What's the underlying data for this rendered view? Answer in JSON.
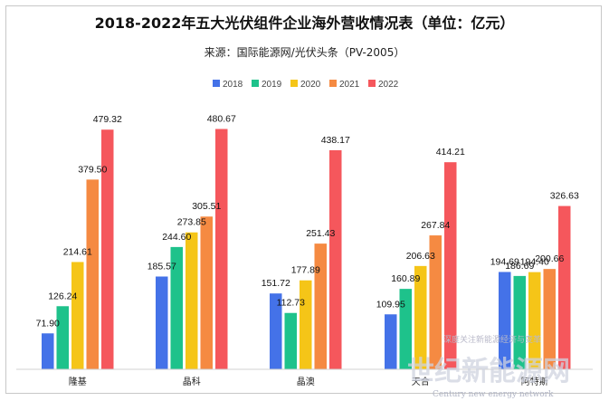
{
  "chart_data": {
    "type": "bar",
    "title": "2018-2022年五大光伏组件企业海外营收情况表（单位：亿元）",
    "subtitle": "来源：国际能源网/光伏头条（PV-2005）",
    "categories": [
      "隆基",
      "晶科",
      "晶澳",
      "天合",
      "阿特斯"
    ],
    "series": [
      {
        "name": "2018",
        "color": "#4472e8",
        "values": [
          71.9,
          185.57,
          151.72,
          109.95,
          194.69
        ]
      },
      {
        "name": "2019",
        "color": "#1ec28b",
        "values": [
          126.24,
          244.6,
          112.73,
          160.89,
          186.69
        ]
      },
      {
        "name": "2020",
        "color": "#f5c518",
        "values": [
          214.61,
          273.85,
          177.89,
          206.63,
          194.4
        ]
      },
      {
        "name": "2021",
        "color": "#f58a42",
        "values": [
          379.5,
          305.51,
          251.43,
          267.84,
          200.66
        ]
      },
      {
        "name": "2022",
        "color": "#f5575c",
        "values": [
          479.32,
          480.67,
          438.17,
          414.21,
          326.63
        ]
      }
    ],
    "ylim": [
      0,
      525
    ],
    "legend_position": "top-center",
    "grid": false
  },
  "watermark": {
    "slogan": "深度关注新能源经济与变革",
    "brand": "世纪新能源网",
    "brand_en": "Century new energy network"
  }
}
